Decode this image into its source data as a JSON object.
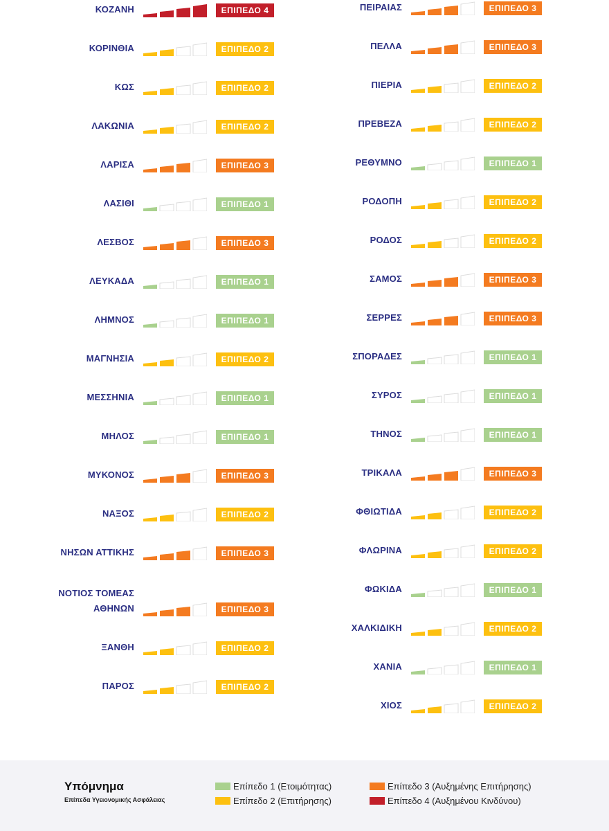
{
  "colors": {
    "1": "#a9d18e",
    "2": "#fdc010",
    "3": "#f47b20",
    "4": "#c21f2a",
    "empty": "#dcdcdc",
    "name": "#2b2f83"
  },
  "badge_labels": {
    "1": "ΕΠΙΠΕΔΟ 1",
    "2": "ΕΠΙΠΕΔΟ 2",
    "3": "ΕΠΙΠΕΔΟ 3",
    "4": "ΕΠΙΠΕΔΟ 4"
  },
  "left": [
    {
      "name": "ΚΟΖΑΝΗ",
      "level": 4
    },
    {
      "name": "ΚΟΡΙΝΘΙΑ",
      "level": 2
    },
    {
      "name": "ΚΩΣ",
      "level": 2
    },
    {
      "name": "ΛΑΚΩΝΙΑ",
      "level": 2
    },
    {
      "name": "ΛΑΡΙΣΑ",
      "level": 3
    },
    {
      "name": "ΛΑΣΙΘΙ",
      "level": 1
    },
    {
      "name": "ΛΕΣΒΟΣ",
      "level": 3
    },
    {
      "name": "ΛΕΥΚΑΔΑ",
      "level": 1
    },
    {
      "name": "ΛΗΜΝΟΣ",
      "level": 1
    },
    {
      "name": "ΜΑΓΝΗΣΙΑ",
      "level": 2
    },
    {
      "name": "ΜΕΣΣΗΝΙΑ",
      "level": 1
    },
    {
      "name": "ΜΗΛΟΣ",
      "level": 1
    },
    {
      "name": "ΜΥΚΟΝΟΣ",
      "level": 3
    },
    {
      "name": "ΝΑΞΟΣ",
      "level": 2
    },
    {
      "name": "ΝΗΣΩΝ ΑΤΤΙΚΗΣ",
      "level": 3
    },
    {
      "name": "ΝΟΤΙΟΣ ΤΟΜΕΑΣ ΑΘΗΝΩΝ",
      "level": 3
    },
    {
      "name": "ΞΑΝΘΗ",
      "level": 2
    },
    {
      "name": "ΠΑΡΟΣ",
      "level": 2
    }
  ],
  "right": [
    {
      "name": "ΠΕΙΡΑΙΑΣ",
      "level": 3
    },
    {
      "name": "ΠΕΛΛΑ",
      "level": 3
    },
    {
      "name": "ΠΙΕΡΙΑ",
      "level": 2
    },
    {
      "name": "ΠΡΕΒΕΖΑ",
      "level": 2
    },
    {
      "name": "ΡΕΘΥΜΝΟ",
      "level": 1
    },
    {
      "name": "ΡΟΔΟΠΗ",
      "level": 2
    },
    {
      "name": "ΡΟΔΟΣ",
      "level": 2
    },
    {
      "name": "ΣΑΜΟΣ",
      "level": 3
    },
    {
      "name": "ΣΕΡΡΕΣ",
      "level": 3
    },
    {
      "name": "ΣΠΟΡΑΔΕΣ",
      "level": 1
    },
    {
      "name": "ΣΥΡΟΣ",
      "level": 1
    },
    {
      "name": "ΤΗΝΟΣ",
      "level": 1
    },
    {
      "name": "ΤΡΙΚΑΛΑ",
      "level": 3
    },
    {
      "name": "ΦΘΙΩΤΙΔΑ",
      "level": 2
    },
    {
      "name": "ΦΛΩΡΙΝΑ",
      "level": 2
    },
    {
      "name": "ΦΩΚΙΔΑ",
      "level": 1
    },
    {
      "name": "ΧΑΛΚΙΔΙΚΗ",
      "level": 2
    },
    {
      "name": "ΧΑΝΙΑ",
      "level": 1
    },
    {
      "name": "ΧΙΟΣ",
      "level": 2
    }
  ],
  "legend": {
    "title": "Υπόμνημα",
    "subtitle": "Επίπεδα Υγειονομικής Ασφάλειας",
    "items": [
      {
        "label": "Επίπεδο 1 (Ετοιμότητας)",
        "level": 1
      },
      {
        "label": "Επίπεδο 2 (Επιτήρησης)",
        "level": 2
      },
      {
        "label": "Επίπεδο 3 (Αυξημένης Επιτήρησης)",
        "level": 3
      },
      {
        "label": "Επίπεδο 4 (Αυξημένου Κινδύνου)",
        "level": 4
      }
    ]
  }
}
